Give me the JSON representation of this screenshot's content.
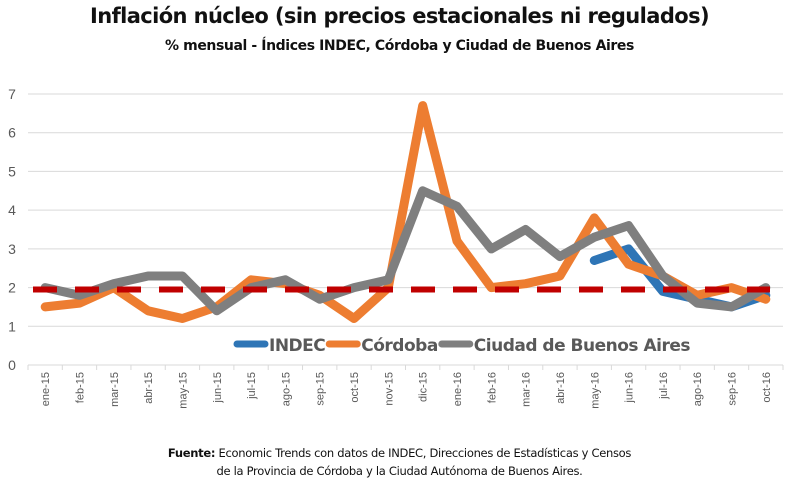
{
  "chart_data": {
    "type": "line",
    "title": "Inflación núcleo (sin precios estacionales ni regulados)",
    "subtitle": "% mensual - Índices INDEC, Córdoba y Ciudad de Buenos Aires",
    "xlabel": "",
    "ylabel": "",
    "ylim": [
      0,
      7
    ],
    "yticks": [
      "0",
      "1",
      "2",
      "3",
      "4",
      "5",
      "6",
      "7"
    ],
    "grid": true,
    "legend_position": "bottom-center-inside",
    "categories": [
      "ene-15",
      "feb-15",
      "mar-15",
      "abr-15",
      "may-15",
      "jun-15",
      "jul-15",
      "ago-15",
      "sep-15",
      "oct-15",
      "nov-15",
      "dic-15",
      "ene-16",
      "feb-16",
      "mar-16",
      "abr-16",
      "may-16",
      "jun-16",
      "jul-16",
      "ago-16",
      "sep-16",
      "oct-16"
    ],
    "series": [
      {
        "name": "INDEC",
        "color": "#2e75b6",
        "values": [
          null,
          null,
          null,
          null,
          null,
          null,
          null,
          null,
          null,
          null,
          null,
          null,
          null,
          null,
          null,
          null,
          2.7,
          3.0,
          1.9,
          1.7,
          1.5,
          1.8
        ]
      },
      {
        "name": "Córdoba",
        "color": "#ed7d31",
        "values": [
          1.5,
          1.6,
          2.0,
          1.4,
          1.2,
          1.5,
          2.2,
          2.1,
          1.8,
          1.2,
          2.0,
          6.7,
          3.2,
          2.0,
          2.1,
          2.3,
          3.8,
          2.6,
          2.3,
          1.8,
          2.0,
          1.7
        ]
      },
      {
        "name": "Ciudad de Buenos Aires",
        "color": "#7f7f7f",
        "values": [
          2.0,
          1.8,
          2.1,
          2.3,
          2.3,
          1.4,
          2.0,
          2.2,
          1.7,
          2.0,
          2.2,
          4.5,
          4.1,
          3.0,
          3.5,
          2.8,
          3.3,
          3.6,
          2.3,
          1.6,
          1.5,
          2.0
        ]
      }
    ],
    "reference_line": {
      "value": 1.95,
      "color": "#c00000",
      "style": "dashed"
    }
  },
  "footnote": {
    "label": "Fuente:",
    "line1": " Economic Trends con datos de INDEC, Direcciones de Estadísticas y Censos",
    "line2": "de la Provincia de Córdoba y la Ciudad Autónoma de Buenos Aires."
  }
}
